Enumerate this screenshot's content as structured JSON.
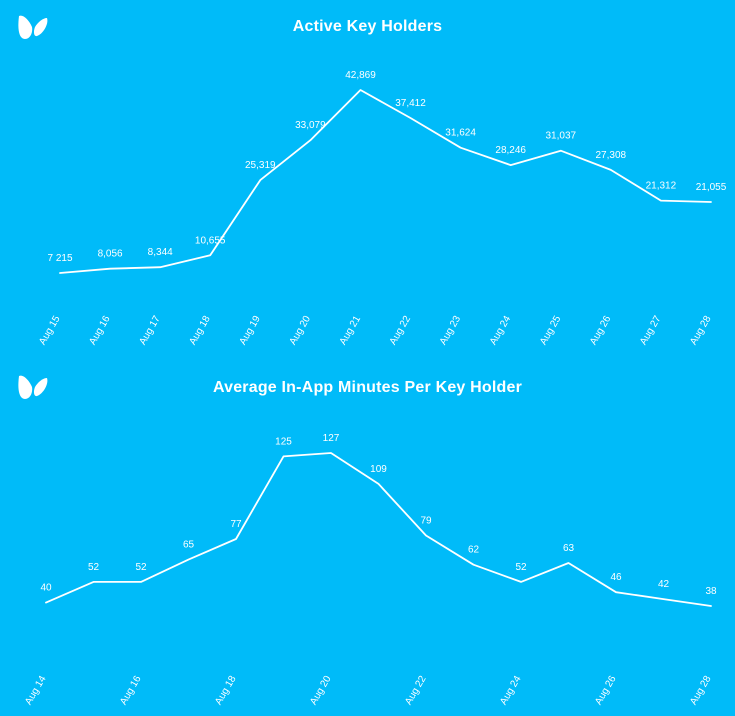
{
  "colors": {
    "background": "#00BBF9",
    "line": "#ffffff",
    "text": "#ffffff"
  },
  "icons": {
    "brand_logo": "butterfly-logo-icon"
  },
  "chart_data": [
    {
      "type": "line",
      "title": "Active Key Holders",
      "categories": [
        "Aug 15",
        "Aug 16",
        "Aug 17",
        "Aug 18",
        "Aug 19",
        "Aug 20",
        "Aug 21",
        "Aug 22",
        "Aug 23",
        "Aug 24",
        "Aug 25",
        "Aug 26",
        "Aug 27",
        "Aug 28"
      ],
      "tick_labels": [
        "Aug 15",
        "Aug 16",
        "Aug 17",
        "Aug 18",
        "Aug 19",
        "Aug 20",
        "Aug 21",
        "Aug 22",
        "Aug 23",
        "Aug 24",
        "Aug 25",
        "Aug 26",
        "Aug 27",
        "Aug 28"
      ],
      "values": [
        7215,
        8056,
        8344,
        10655,
        25319,
        33079,
        42869,
        37412,
        31624,
        28246,
        31037,
        27308,
        21312,
        21055
      ],
      "value_labels": [
        "7 215",
        "8,056",
        "8,344",
        "10,655",
        "25,319",
        "33,079",
        "42,869",
        "37,412",
        "31,624",
        "28,246",
        "31,037",
        "27,308",
        "21,312",
        "21,055"
      ],
      "xlabel": "",
      "ylabel": "",
      "ylim": [
        7215,
        42869
      ],
      "grid": false,
      "legend": "none"
    },
    {
      "type": "line",
      "title": "Average In-App Minutes Per Key Holder",
      "categories": [
        "Aug 14",
        "Aug 15",
        "Aug 16",
        "Aug 17",
        "Aug 18",
        "Aug 19",
        "Aug 20",
        "Aug 21",
        "Aug 22",
        "Aug 23",
        "Aug 24",
        "Aug 25",
        "Aug 26",
        "Aug 27",
        "Aug 28"
      ],
      "tick_labels": [
        "Aug 14",
        "",
        "Aug 16",
        "",
        "Aug 18",
        "",
        "Aug 20",
        "",
        "Aug 22",
        "",
        "Aug 24",
        "",
        "Aug 26",
        "",
        "Aug 28"
      ],
      "values": [
        40,
        52,
        52,
        65,
        77,
        125,
        127,
        109,
        79,
        62,
        52,
        63,
        46,
        42,
        38
      ],
      "value_labels": [
        "40",
        "52",
        "52",
        "65",
        "77",
        "125",
        "127",
        "109",
        "79",
        "62",
        "52",
        "63",
        "46",
        "42",
        "38"
      ],
      "xlabel": "",
      "ylabel": "",
      "ylim": [
        38,
        127
      ],
      "grid": false,
      "legend": "none"
    }
  ]
}
